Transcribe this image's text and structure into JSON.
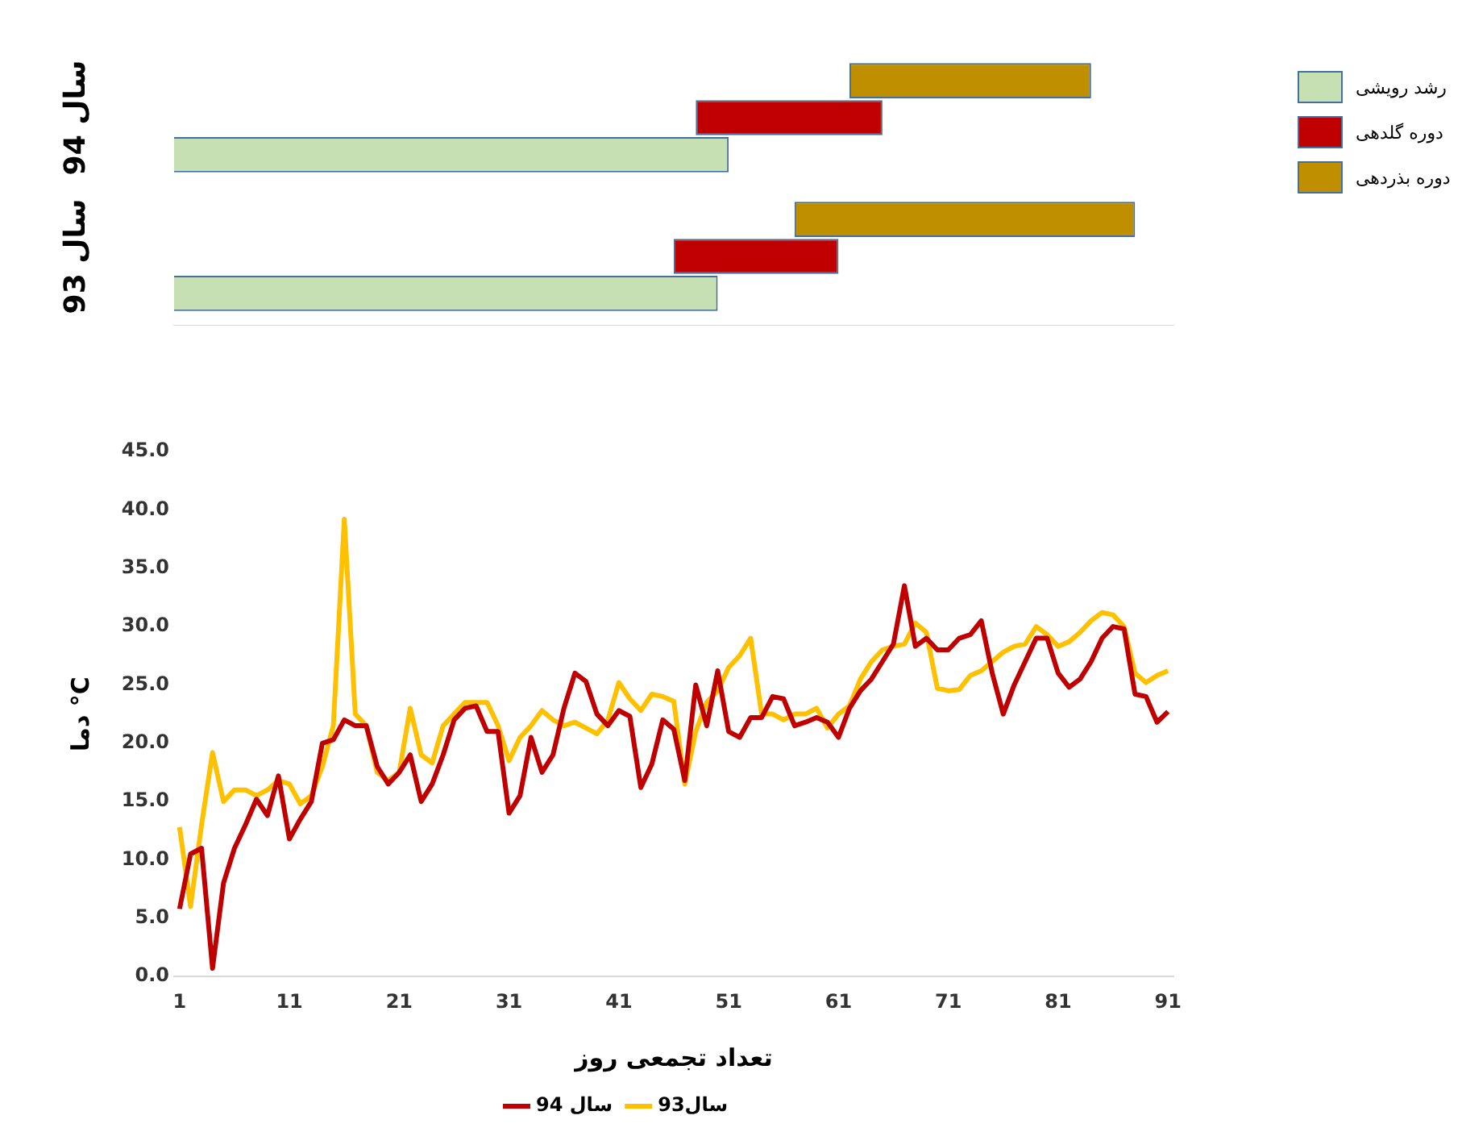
{
  "chart_data": [
    {
      "type": "bar",
      "orientation": "horizontal",
      "categories": [
        "سال 94",
        "سال 93"
      ],
      "xlim": [
        0.5,
        91.5
      ],
      "tick_labels": "y",
      "legend": "right",
      "grid": false,
      "series": [
        {
          "name": "رشد رویشی",
          "color": "#c6e0b4",
          "values": [
            51,
            50
          ],
          "base": [
            0,
            0
          ]
        },
        {
          "name": "دوره گلدهی",
          "color": "#c00000",
          "values": [
            17,
            15
          ],
          "base": [
            48,
            46
          ]
        },
        {
          "name": "دوره بذردهی",
          "color": "#bf8f00",
          "values": [
            22,
            31
          ],
          "base": [
            62,
            57
          ]
        }
      ]
    },
    {
      "type": "line",
      "xlabel": "تعداد تجمعی روز",
      "ylabel": "دما °C",
      "xlim": [
        0.5,
        91.5
      ],
      "xticks": [
        1,
        11,
        21,
        31,
        41,
        51,
        61,
        71,
        81,
        91
      ],
      "ylim": [
        0,
        45
      ],
      "yticks": [
        {
          "value": 0,
          "label": "0.0"
        },
        {
          "value": 5,
          "label": "5.0"
        },
        {
          "value": 10,
          "label": "10.0"
        },
        {
          "value": 15,
          "label": "15.0"
        },
        {
          "value": 20,
          "label": "20.0"
        },
        {
          "value": 25,
          "label": "25.0"
        },
        {
          "value": 30,
          "label": "30.0"
        },
        {
          "value": 35,
          "label": "35.0"
        },
        {
          "value": 40,
          "label": "40.0"
        },
        {
          "value": 45,
          "label": "45.0"
        }
      ],
      "grid": false,
      "legend": "bottom",
      "marker": "none",
      "x": [
        1,
        2,
        3,
        4,
        5,
        6,
        7,
        8,
        9,
        10,
        11,
        12,
        13,
        14,
        15,
        16,
        17,
        18,
        19,
        20,
        21,
        22,
        23,
        24,
        25,
        26,
        27,
        28,
        29,
        30,
        31,
        32,
        33,
        34,
        35,
        36,
        37,
        38,
        39,
        40,
        41,
        42,
        43,
        44,
        45,
        46,
        47,
        48,
        49,
        50,
        51,
        52,
        53,
        54,
        55,
        56,
        57,
        58,
        59,
        60,
        61,
        62,
        63,
        64,
        65,
        66,
        67,
        68,
        69,
        70,
        71,
        72,
        73,
        74,
        75,
        76,
        77,
        78,
        79,
        80,
        81,
        82,
        83,
        84,
        85,
        86,
        87,
        88,
        89,
        90,
        91
      ],
      "series": [
        {
          "name": "سال 94",
          "color": "#c00000",
          "values": [
            5.8,
            10.5,
            11,
            0.7,
            8,
            11,
            13,
            15.2,
            13.8,
            17.2,
            11.8,
            13.5,
            15,
            20,
            20.3,
            22,
            21.5,
            21.5,
            18,
            16.5,
            17.5,
            19,
            15,
            16.5,
            19,
            22,
            23,
            23.2,
            21,
            21,
            14,
            15.5,
            20.5,
            17.5,
            19,
            23,
            26,
            25.3,
            22.5,
            21.5,
            22.8,
            22.3,
            16.2,
            18.2,
            22,
            21.2,
            16.8,
            25,
            21.5,
            26.2,
            21,
            20.5,
            22.2,
            22.2,
            24,
            23.8,
            21.5,
            21.8,
            22.2,
            21.8,
            20.5,
            23,
            24.5,
            25.5,
            27,
            28.5,
            33.5,
            28.3,
            29,
            28,
            28,
            29,
            29.3,
            30.5,
            26,
            22.5,
            25,
            27,
            29,
            29,
            26,
            24.8,
            25.5,
            27,
            29,
            30,
            29.8,
            24.2,
            24,
            21.8,
            22.7
          ]
        },
        {
          "name": "سال93",
          "color": "#ffc000",
          "values": [
            12.8,
            6,
            13,
            19.2,
            15,
            16,
            16,
            15.5,
            16,
            16.8,
            16.5,
            14.8,
            15.5,
            18,
            21.5,
            39.2,
            22.5,
            21.5,
            17.5,
            16.8,
            17.5,
            23,
            19,
            18.3,
            21.5,
            22.5,
            23.5,
            23.5,
            23.5,
            21.5,
            18.5,
            20.5,
            21.5,
            22.8,
            22,
            21.5,
            21.8,
            21.3,
            20.8,
            22,
            25.2,
            23.8,
            22.8,
            24.2,
            24,
            23.6,
            16.5,
            21,
            23.5,
            24.5,
            26.5,
            27.5,
            29,
            22.5,
            22.5,
            22,
            22.5,
            22.5,
            23,
            21.3,
            22.5,
            23.2,
            25.5,
            27,
            28,
            28.3,
            28.5,
            30.3,
            29.5,
            24.7,
            24.5,
            24.6,
            25.8,
            26.2,
            27,
            27.8,
            28.3,
            28.5,
            30,
            29.3,
            28.3,
            28.7,
            29.5,
            30.5,
            31.2,
            31,
            30,
            26,
            25.2,
            25.8,
            26.2
          ]
        }
      ]
    }
  ]
}
